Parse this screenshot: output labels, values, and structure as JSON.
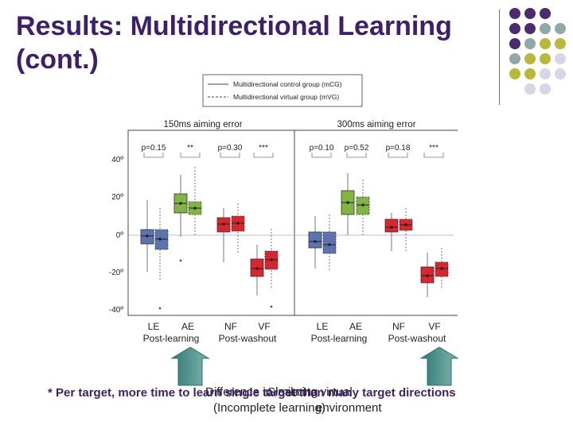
{
  "slide": {
    "title_line1": "Results: Multidirectional Learning",
    "title_line2": "(cont.)",
    "colors": {
      "title": "#3d1f6b",
      "purple": "#4b2a6e",
      "teal": "#8fa9a7",
      "olive": "#b9b838",
      "lilac": "#d8d6e6"
    }
  },
  "legend": {
    "items": [
      {
        "label": "Multidirectional control group (mCG)",
        "style": "solid"
      },
      {
        "label": "Multidirectional virtual group (mVG)",
        "style": "dashed"
      }
    ]
  },
  "figure": {
    "panels": [
      {
        "title": "150ms aiming error",
        "annotations": [
          "p=0.15",
          "**",
          "p=0.30",
          "***"
        ],
        "groups": [
          {
            "label": "LE",
            "color": "#5b73b0"
          },
          {
            "label": "AE",
            "color": "#7fb540"
          },
          {
            "label": "NF",
            "color": "#d9262e"
          },
          {
            "label": "VF",
            "color": "#d9262e"
          }
        ],
        "phase_labels": [
          "Post-learning",
          "Post-washout"
        ]
      },
      {
        "title": "300ms aiming error",
        "annotations": [
          "p=0.10",
          "p=0.52",
          "p=0.18",
          "***"
        ],
        "groups": [
          {
            "label": "LE",
            "color": "#5b73b0"
          },
          {
            "label": "AE",
            "color": "#7fb540"
          },
          {
            "label": "NF",
            "color": "#d9262e"
          },
          {
            "label": "VF",
            "color": "#d9262e"
          }
        ],
        "phase_labels": [
          "Post-learning",
          "Post-washout"
        ]
      }
    ],
    "y_ticks": [
      "40º",
      "20º",
      "0º",
      "-20º",
      "-40º"
    ]
  },
  "callouts": {
    "left": "Difference in learning",
    "left_sub": "(Incomplete learning)",
    "right": "Similar to virtual",
    "right_sub": "environment",
    "footnote": "* Per target, more time to learn single target than many target directions"
  }
}
